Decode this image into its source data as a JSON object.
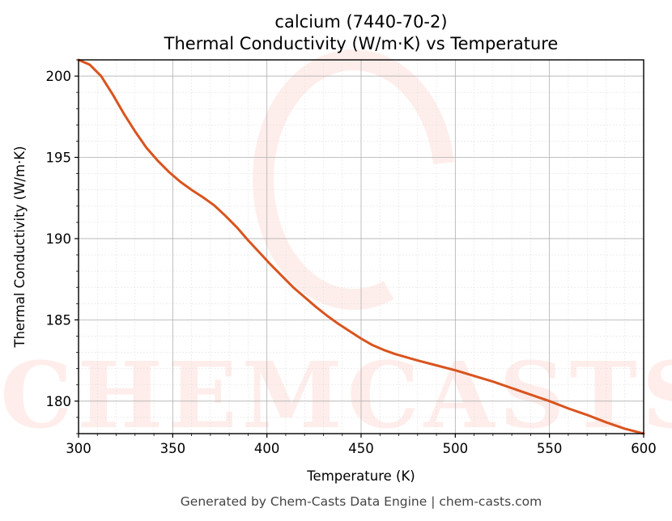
{
  "chart_data": {
    "type": "line",
    "title": "calcium (7440-70-2)",
    "subtitle": "Thermal Conductivity (W/m·K) vs Temperature",
    "xlabel": "Temperature (K)",
    "ylabel": "Thermal Conductivity (W/m·K)",
    "xlim": [
      300,
      600
    ],
    "ylim": [
      178,
      201
    ],
    "xticks": [
      300,
      350,
      400,
      450,
      500,
      550,
      600
    ],
    "yticks": [
      180,
      185,
      190,
      195,
      200
    ],
    "grid": true,
    "line_color": "#d9541e",
    "series": [
      {
        "x": [
          300,
          306,
          312,
          318,
          324,
          330,
          336,
          342,
          348,
          354,
          360,
          366,
          372,
          378,
          384,
          390,
          396,
          402,
          408,
          414,
          420,
          426,
          432,
          438,
          444,
          450,
          456,
          462,
          468,
          474,
          480,
          490,
          500,
          510,
          520,
          530,
          540,
          550,
          560,
          570,
          580,
          590,
          600
        ],
        "y": [
          201.0,
          200.7,
          200.0,
          198.9,
          197.7,
          196.6,
          195.6,
          194.8,
          194.1,
          193.5,
          193.0,
          192.55,
          192.05,
          191.4,
          190.7,
          189.9,
          189.15,
          188.4,
          187.7,
          187.0,
          186.4,
          185.8,
          185.25,
          184.75,
          184.3,
          183.85,
          183.45,
          183.15,
          182.9,
          182.7,
          182.5,
          182.2,
          181.9,
          181.55,
          181.2,
          180.8,
          180.4,
          180.0,
          179.55,
          179.15,
          178.7,
          178.3,
          178.0
        ]
      }
    ],
    "footer": "Generated by Chem-Casts Data Engine | chem-casts.com",
    "watermark_text": "CHEMCASTS"
  }
}
